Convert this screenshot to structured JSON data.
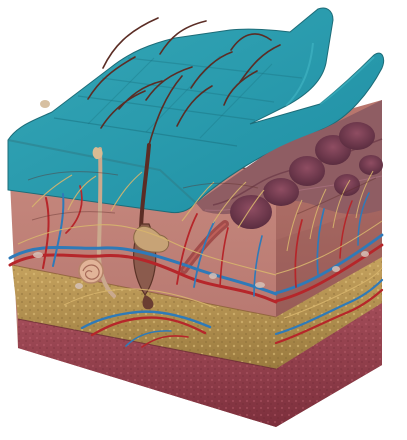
{
  "figure": {
    "kind": "3d skin cross-section illustration",
    "layers": [
      {
        "name": "epidermis-surface",
        "color": "#2c9aad"
      },
      {
        "name": "dermis",
        "color": "#b9786f"
      },
      {
        "name": "subcutaneous-fat",
        "color": "#b79a5c"
      },
      {
        "name": "muscle",
        "color": "#9a4954"
      }
    ],
    "palette": {
      "blood_vessel_red": "#b6262a",
      "blood_vessel_blue": "#2f7ab8",
      "nerve": "#d8b56d",
      "hair": "#5b2d25",
      "outline": "#4b2a28"
    }
  }
}
